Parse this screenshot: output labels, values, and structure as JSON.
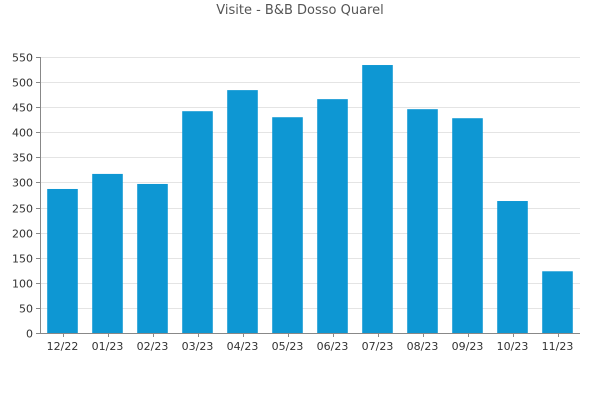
{
  "chart_data": {
    "type": "bar",
    "title": "Visite - B&B Dosso Quarel",
    "xlabel": "",
    "ylabel": "",
    "categories": [
      "12/22",
      "01/23",
      "02/23",
      "03/23",
      "04/23",
      "05/23",
      "06/23",
      "07/23",
      "08/23",
      "09/23",
      "10/23",
      "11/23"
    ],
    "values": [
      287,
      317,
      297,
      442,
      484,
      430,
      466,
      534,
      446,
      428,
      263,
      123
    ],
    "ylim": [
      0,
      550
    ],
    "yticks": [
      0,
      50,
      100,
      150,
      200,
      250,
      300,
      350,
      400,
      450,
      500,
      550
    ],
    "grid": true,
    "bar_color": "#0e97d3",
    "grid_color": "#e4e4e4",
    "axis_color": "#888888",
    "text_color": "#333333"
  }
}
